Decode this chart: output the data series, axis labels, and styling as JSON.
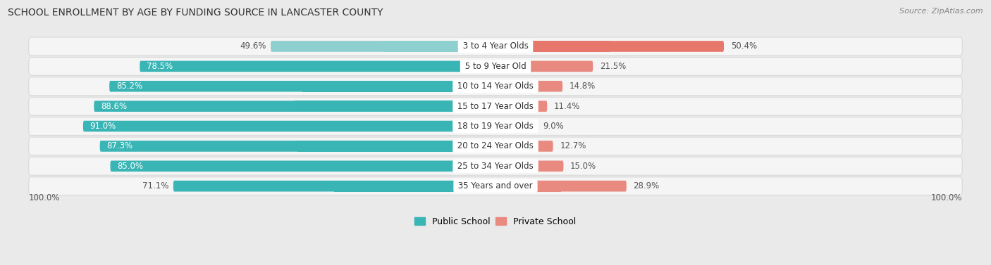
{
  "title": "SCHOOL ENROLLMENT BY AGE BY FUNDING SOURCE IN LANCASTER COUNTY",
  "source": "Source: ZipAtlas.com",
  "categories": [
    "3 to 4 Year Olds",
    "5 to 9 Year Old",
    "10 to 14 Year Olds",
    "15 to 17 Year Olds",
    "18 to 19 Year Olds",
    "20 to 24 Year Olds",
    "25 to 34 Year Olds",
    "35 Years and over"
  ],
  "public_pct": [
    49.6,
    78.5,
    85.2,
    88.6,
    91.0,
    87.3,
    85.0,
    71.1
  ],
  "private_pct": [
    50.4,
    21.5,
    14.8,
    11.4,
    9.0,
    12.7,
    15.0,
    28.9
  ],
  "public_color": "#3ab5b5",
  "private_color": "#e88a80",
  "public_color_row0": "#8ecfcf",
  "private_color_row0": "#e8776b",
  "background_color": "#eaeaea",
  "row_bg_color": "#f5f5f5",
  "row_border_color": "#d8d8d8",
  "axis_label_left": "100.0%",
  "axis_label_right": "100.0%",
  "legend_public": "Public School",
  "legend_private": "Private School",
  "title_fontsize": 10,
  "source_fontsize": 8,
  "bar_label_fontsize": 8.5,
  "cat_label_fontsize": 8.5
}
